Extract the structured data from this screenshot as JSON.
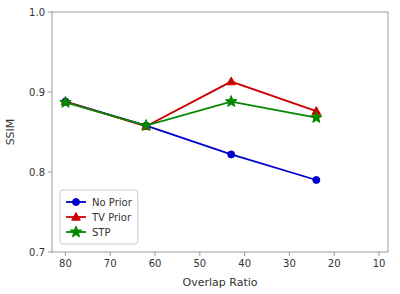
{
  "chart_data": {
    "type": "line",
    "xlabel": "Overlap Ratio",
    "ylabel": "SSIM",
    "x": [
      80,
      62,
      43,
      24
    ],
    "series": [
      {
        "name": "No Prior",
        "color": "#0000cc",
        "marker": "circle",
        "values": [
          0.888,
          0.858,
          0.822,
          0.79
        ]
      },
      {
        "name": "TV Prior",
        "color": "#cc0000",
        "marker": "triangle",
        "values": [
          0.888,
          0.857,
          0.913,
          0.876
        ]
      },
      {
        "name": "STP",
        "color": "#008800",
        "marker": "star",
        "values": [
          0.887,
          0.858,
          0.888,
          0.868
        ]
      }
    ],
    "xlim": [
      83,
      8
    ],
    "ylim": [
      0.7,
      1.0
    ],
    "xticks": [
      80,
      70,
      60,
      50,
      40,
      30,
      20,
      10
    ],
    "yticks": [
      0.7,
      0.8,
      0.9,
      {
        "value": 1.0,
        "label": "1.0"
      }
    ],
    "legend": "lower left",
    "grid": false
  }
}
